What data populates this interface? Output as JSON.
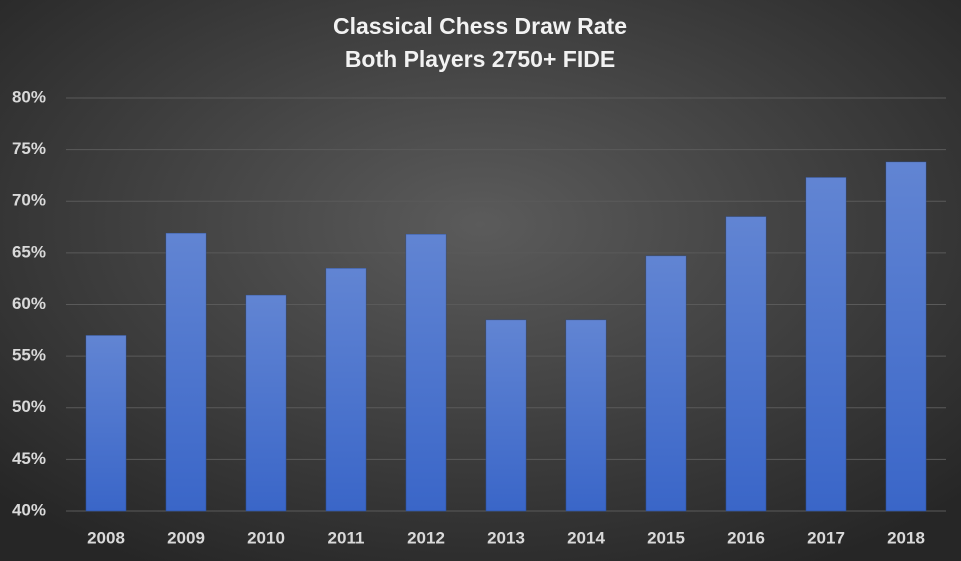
{
  "chart_data": {
    "type": "bar",
    "title": "Classical Chess Draw Rate",
    "subtitle": "Both Players 2750+ FIDE",
    "categories": [
      "2008",
      "2009",
      "2010",
      "2011",
      "2012",
      "2013",
      "2014",
      "2015",
      "2016",
      "2017",
      "2018"
    ],
    "values": [
      57.0,
      66.9,
      60.9,
      63.5,
      66.8,
      58.5,
      58.5,
      64.7,
      68.5,
      72.3,
      73.8
    ],
    "color": "#3a66c8",
    "ylim": [
      40,
      80
    ],
    "yticks": [
      {
        "value": 40,
        "label": "40%"
      },
      {
        "value": 45,
        "label": "45%"
      },
      {
        "value": 50,
        "label": "50%"
      },
      {
        "value": 55,
        "label": "55%"
      },
      {
        "value": 60,
        "label": "60%"
      },
      {
        "value": 65,
        "label": "65%"
      },
      {
        "value": 70,
        "label": "70%"
      },
      {
        "value": 75,
        "label": "75%"
      },
      {
        "value": 80,
        "label": "80%"
      }
    ],
    "grid": true
  }
}
